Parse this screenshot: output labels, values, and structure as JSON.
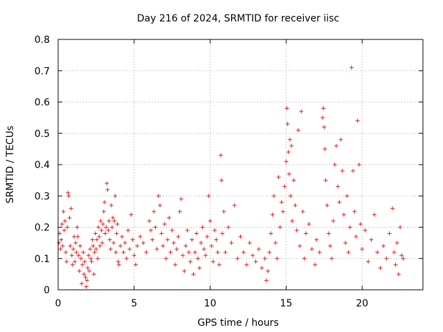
{
  "chart_data": {
    "type": "scatter",
    "title": "Day 216 of 2024, SRMTID for receiver iisc",
    "xlabel": "GPS time / hours",
    "ylabel": "SRMTID / TECUs",
    "xlim": [
      0,
      24
    ],
    "ylim": [
      0,
      0.8
    ],
    "xticks": [
      0,
      5,
      10,
      15,
      20
    ],
    "yticks": [
      0,
      0.1,
      0.2,
      0.3,
      0.4,
      0.5,
      0.6,
      0.7,
      0.8
    ],
    "xtick_labels": [
      "0",
      "5",
      "10",
      "15",
      "20"
    ],
    "ytick_labels": [
      "0",
      "0.1",
      "0.2",
      "0.3",
      "0.4",
      "0.5",
      "0.6",
      "0.7",
      "0.8"
    ],
    "grid": true,
    "marker": "+",
    "color": "#e41a1c",
    "series": [
      {
        "name": "SRMTID",
        "points": [
          [
            0.05,
            0.15
          ],
          [
            0.1,
            0.18
          ],
          [
            0.15,
            0.13
          ],
          [
            0.2,
            0.16
          ],
          [
            0.25,
            0.21
          ],
          [
            0.3,
            0.14
          ],
          [
            0.35,
            0.25
          ],
          [
            0.4,
            0.19
          ],
          [
            0.45,
            0.22
          ],
          [
            0.5,
            0.12
          ],
          [
            0.55,
            0.09
          ],
          [
            0.6,
            0.2
          ],
          [
            0.65,
            0.31
          ],
          [
            0.7,
            0.3
          ],
          [
            0.75,
            0.23
          ],
          [
            0.8,
            0.14
          ],
          [
            0.85,
            0.26
          ],
          [
            0.9,
            0.11
          ],
          [
            0.95,
            0.08
          ],
          [
            1.0,
            0.13
          ],
          [
            1.05,
            0.17
          ],
          [
            1.1,
            0.09
          ],
          [
            1.15,
            0.15
          ],
          [
            1.2,
            0.12
          ],
          [
            1.25,
            0.2
          ],
          [
            1.3,
            0.17
          ],
          [
            1.35,
            0.11
          ],
          [
            1.4,
            0.06
          ],
          [
            1.45,
            0.14
          ],
          [
            1.5,
            0.1
          ],
          [
            1.55,
            0.02
          ],
          [
            1.6,
            0.08
          ],
          [
            1.65,
            0.12
          ],
          [
            1.7,
            0.05
          ],
          [
            1.75,
            0.09
          ],
          [
            1.8,
            0.04
          ],
          [
            1.85,
            0.01
          ],
          [
            1.9,
            0.03
          ],
          [
            1.95,
            0.07
          ],
          [
            2.0,
            0.11
          ],
          [
            2.05,
            0.06
          ],
          [
            2.1,
            0.13
          ],
          [
            2.15,
            0.1
          ],
          [
            2.2,
            0.09
          ],
          [
            2.25,
            0.16
          ],
          [
            2.3,
            0.14
          ],
          [
            2.35,
            0.05
          ],
          [
            2.4,
            0.12
          ],
          [
            2.45,
            0.18
          ],
          [
            2.5,
            0.13
          ],
          [
            2.55,
            0.16
          ],
          [
            2.6,
            0.1
          ],
          [
            2.65,
            0.2
          ],
          [
            2.7,
            0.17
          ],
          [
            2.75,
            0.14
          ],
          [
            2.8,
            0.22
          ],
          [
            2.85,
            0.19
          ],
          [
            2.9,
            0.15
          ],
          [
            2.95,
            0.21
          ],
          [
            3.0,
            0.25
          ],
          [
            3.05,
            0.28
          ],
          [
            3.1,
            0.18
          ],
          [
            3.15,
            0.2
          ],
          [
            3.2,
            0.34
          ],
          [
            3.25,
            0.32
          ],
          [
            3.3,
            0.19
          ],
          [
            3.35,
            0.22
          ],
          [
            3.4,
            0.16
          ],
          [
            3.45,
            0.13
          ],
          [
            3.5,
            0.27
          ],
          [
            3.55,
            0.2
          ],
          [
            3.6,
            0.23
          ],
          [
            3.65,
            0.15
          ],
          [
            3.7,
            0.22
          ],
          [
            3.75,
            0.3
          ],
          [
            3.8,
            0.12
          ],
          [
            3.85,
            0.18
          ],
          [
            3.9,
            0.21
          ],
          [
            3.95,
            0.09
          ],
          [
            4.0,
            0.08
          ],
          [
            4.1,
            0.14
          ],
          [
            4.2,
            0.17
          ],
          [
            4.3,
            0.12
          ],
          [
            4.4,
            0.15
          ],
          [
            4.5,
            0.1
          ],
          [
            4.6,
            0.19
          ],
          [
            4.7,
            0.13
          ],
          [
            4.8,
            0.24
          ],
          [
            4.9,
            0.16
          ],
          [
            5.0,
            0.11
          ],
          [
            5.1,
            0.08
          ],
          [
            5.2,
            0.14
          ],
          [
            5.4,
            0.17
          ],
          [
            5.6,
            0.15
          ],
          [
            5.8,
            0.12
          ],
          [
            6.0,
            0.22
          ],
          [
            6.1,
            0.19
          ],
          [
            6.2,
            0.16
          ],
          [
            6.3,
            0.25
          ],
          [
            6.4,
            0.2
          ],
          [
            6.5,
            0.13
          ],
          [
            6.6,
            0.3
          ],
          [
            6.7,
            0.27
          ],
          [
            6.8,
            0.18
          ],
          [
            6.9,
            0.14
          ],
          [
            7.0,
            0.21
          ],
          [
            7.1,
            0.1
          ],
          [
            7.2,
            0.16
          ],
          [
            7.3,
            0.23
          ],
          [
            7.4,
            0.12
          ],
          [
            7.5,
            0.19
          ],
          [
            7.6,
            0.15
          ],
          [
            7.7,
            0.08
          ],
          [
            7.8,
            0.13
          ],
          [
            7.9,
            0.17
          ],
          [
            8.0,
            0.25
          ],
          [
            8.1,
            0.29
          ],
          [
            8.2,
            0.11
          ],
          [
            8.3,
            0.06
          ],
          [
            8.4,
            0.14
          ],
          [
            8.5,
            0.19
          ],
          [
            8.6,
            0.12
          ],
          [
            8.7,
            0.09
          ],
          [
            8.8,
            0.16
          ],
          [
            8.9,
            0.05
          ],
          [
            9.0,
            0.12
          ],
          [
            9.1,
            0.18
          ],
          [
            9.2,
            0.1
          ],
          [
            9.3,
            0.07
          ],
          [
            9.4,
            0.15
          ],
          [
            9.5,
            0.2
          ],
          [
            9.6,
            0.13
          ],
          [
            9.7,
            0.11
          ],
          [
            9.8,
            0.17
          ],
          [
            9.9,
            0.3
          ],
          [
            10.0,
            0.22
          ],
          [
            10.1,
            0.14
          ],
          [
            10.2,
            0.09
          ],
          [
            10.3,
            0.19
          ],
          [
            10.4,
            0.16
          ],
          [
            10.5,
            0.12
          ],
          [
            10.6,
            0.08
          ],
          [
            10.7,
            0.43
          ],
          [
            10.75,
            0.35
          ],
          [
            10.8,
            0.18
          ],
          [
            10.9,
            0.25
          ],
          [
            11.0,
            0.12
          ],
          [
            11.2,
            0.2
          ],
          [
            11.4,
            0.15
          ],
          [
            11.6,
            0.27
          ],
          [
            11.8,
            0.1
          ],
          [
            12.0,
            0.17
          ],
          [
            12.2,
            0.12
          ],
          [
            12.4,
            0.08
          ],
          [
            12.6,
            0.15
          ],
          [
            12.8,
            0.11
          ],
          [
            13.0,
            0.09
          ],
          [
            13.2,
            0.13
          ],
          [
            13.4,
            0.07
          ],
          [
            13.6,
            0.1
          ],
          [
            13.7,
            0.03
          ],
          [
            13.8,
            0.06
          ],
          [
            13.9,
            0.12
          ],
          [
            14.0,
            0.18
          ],
          [
            14.1,
            0.24
          ],
          [
            14.2,
            0.3
          ],
          [
            14.3,
            0.15
          ],
          [
            14.4,
            0.1
          ],
          [
            14.5,
            0.36
          ],
          [
            14.6,
            0.2
          ],
          [
            14.7,
            0.28
          ],
          [
            14.8,
            0.25
          ],
          [
            14.9,
            0.33
          ],
          [
            15.0,
            0.41
          ],
          [
            15.05,
            0.58
          ],
          [
            15.1,
            0.53
          ],
          [
            15.15,
            0.44
          ],
          [
            15.2,
            0.37
          ],
          [
            15.25,
            0.48
          ],
          [
            15.3,
            0.3
          ],
          [
            15.35,
            0.46
          ],
          [
            15.4,
            0.22
          ],
          [
            15.5,
            0.35
          ],
          [
            15.6,
            0.27
          ],
          [
            15.7,
            0.19
          ],
          [
            15.8,
            0.51
          ],
          [
            15.9,
            0.14
          ],
          [
            16.0,
            0.57
          ],
          [
            16.1,
            0.25
          ],
          [
            16.2,
            0.1
          ],
          [
            16.3,
            0.18
          ],
          [
            16.5,
            0.21
          ],
          [
            16.7,
            0.13
          ],
          [
            16.9,
            0.08
          ],
          [
            17.0,
            0.16
          ],
          [
            17.2,
            0.12
          ],
          [
            17.4,
            0.55
          ],
          [
            17.45,
            0.58
          ],
          [
            17.5,
            0.52
          ],
          [
            17.55,
            0.45
          ],
          [
            17.6,
            0.35
          ],
          [
            17.7,
            0.27
          ],
          [
            17.8,
            0.18
          ],
          [
            17.9,
            0.14
          ],
          [
            18.0,
            0.1
          ],
          [
            18.1,
            0.22
          ],
          [
            18.2,
            0.4
          ],
          [
            18.3,
            0.46
          ],
          [
            18.4,
            0.33
          ],
          [
            18.5,
            0.28
          ],
          [
            18.6,
            0.48
          ],
          [
            18.7,
            0.38
          ],
          [
            18.8,
            0.24
          ],
          [
            18.9,
            0.15
          ],
          [
            19.0,
            0.3
          ],
          [
            19.1,
            0.12
          ],
          [
            19.2,
            0.2
          ],
          [
            19.3,
            0.71
          ],
          [
            19.4,
            0.38
          ],
          [
            19.5,
            0.25
          ],
          [
            19.6,
            0.17
          ],
          [
            19.7,
            0.54
          ],
          [
            19.8,
            0.4
          ],
          [
            19.9,
            0.21
          ],
          [
            20.0,
            0.13
          ],
          [
            20.2,
            0.19
          ],
          [
            20.4,
            0.09
          ],
          [
            20.6,
            0.16
          ],
          [
            20.8,
            0.24
          ],
          [
            21.0,
            0.12
          ],
          [
            21.2,
            0.07
          ],
          [
            21.4,
            0.14
          ],
          [
            21.6,
            0.1
          ],
          [
            21.8,
            0.18
          ],
          [
            22.0,
            0.26
          ],
          [
            22.1,
            0.12
          ],
          [
            22.2,
            0.08
          ],
          [
            22.3,
            0.15
          ],
          [
            22.4,
            0.05
          ],
          [
            22.5,
            0.2
          ],
          [
            22.6,
            0.11
          ],
          [
            22.7,
            0.1
          ]
        ]
      }
    ]
  }
}
